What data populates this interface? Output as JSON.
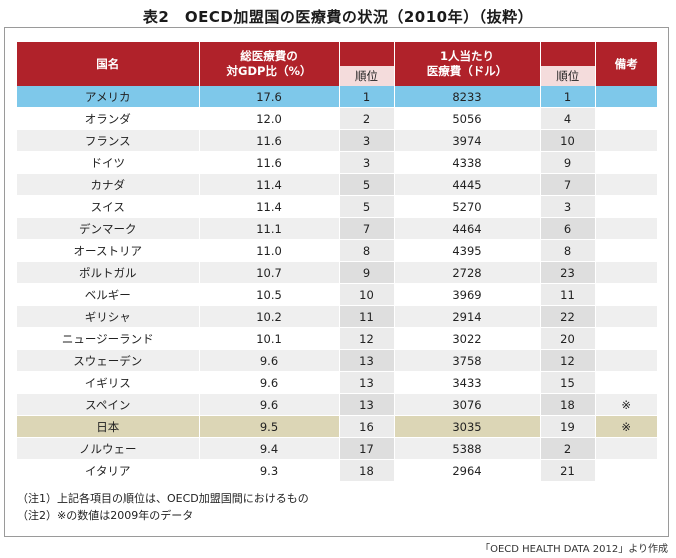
{
  "title": "表2　OECD加盟国の医療費の状況（2010年）（抜粋）",
  "headers": {
    "country": "国名",
    "gdp_ratio": "総医療費の対GDP比（%）",
    "gdp_ratio_line1": "総医療費の",
    "gdp_ratio_line2": "対GDP比（%）",
    "rank": "順位",
    "per_capita_line1": "1人当たり",
    "per_capita_line2": "医療費（ドル）",
    "remarks": "備考"
  },
  "rows": [
    {
      "country": "アメリカ",
      "gdp_ratio": "17.6",
      "gdp_rank": "1",
      "per_capita": "8233",
      "pc_rank": "1",
      "remark": ""
    },
    {
      "country": "オランダ",
      "gdp_ratio": "12.0",
      "gdp_rank": "2",
      "per_capita": "5056",
      "pc_rank": "4",
      "remark": ""
    },
    {
      "country": "フランス",
      "gdp_ratio": "11.6",
      "gdp_rank": "3",
      "per_capita": "3974",
      "pc_rank": "10",
      "remark": ""
    },
    {
      "country": "ドイツ",
      "gdp_ratio": "11.6",
      "gdp_rank": "3",
      "per_capita": "4338",
      "pc_rank": "9",
      "remark": ""
    },
    {
      "country": "カナダ",
      "gdp_ratio": "11.4",
      "gdp_rank": "5",
      "per_capita": "4445",
      "pc_rank": "7",
      "remark": ""
    },
    {
      "country": "スイス",
      "gdp_ratio": "11.4",
      "gdp_rank": "5",
      "per_capita": "5270",
      "pc_rank": "3",
      "remark": ""
    },
    {
      "country": "デンマーク",
      "gdp_ratio": "11.1",
      "gdp_rank": "7",
      "per_capita": "4464",
      "pc_rank": "6",
      "remark": ""
    },
    {
      "country": "オーストリア",
      "gdp_ratio": "11.0",
      "gdp_rank": "8",
      "per_capita": "4395",
      "pc_rank": "8",
      "remark": ""
    },
    {
      "country": "ポルトガル",
      "gdp_ratio": "10.7",
      "gdp_rank": "9",
      "per_capita": "2728",
      "pc_rank": "23",
      "remark": ""
    },
    {
      "country": "ベルギー",
      "gdp_ratio": "10.5",
      "gdp_rank": "10",
      "per_capita": "3969",
      "pc_rank": "11",
      "remark": ""
    },
    {
      "country": "ギリシャ",
      "gdp_ratio": "10.2",
      "gdp_rank": "11",
      "per_capita": "2914",
      "pc_rank": "22",
      "remark": ""
    },
    {
      "country": "ニュージーランド",
      "gdp_ratio": "10.1",
      "gdp_rank": "12",
      "per_capita": "3022",
      "pc_rank": "20",
      "remark": ""
    },
    {
      "country": "スウェーデン",
      "gdp_ratio": "9.6",
      "gdp_rank": "13",
      "per_capita": "3758",
      "pc_rank": "12",
      "remark": ""
    },
    {
      "country": "イギリス",
      "gdp_ratio": "9.6",
      "gdp_rank": "13",
      "per_capita": "3433",
      "pc_rank": "15",
      "remark": ""
    },
    {
      "country": "スペイン",
      "gdp_ratio": "9.6",
      "gdp_rank": "13",
      "per_capita": "3076",
      "pc_rank": "18",
      "remark": "※"
    },
    {
      "country": "日本",
      "gdp_ratio": "9.5",
      "gdp_rank": "16",
      "per_capita": "3035",
      "pc_rank": "19",
      "remark": "※"
    },
    {
      "country": "ノルウェー",
      "gdp_ratio": "9.4",
      "gdp_rank": "17",
      "per_capita": "5388",
      "pc_rank": "2",
      "remark": ""
    },
    {
      "country": "イタリア",
      "gdp_ratio": "9.3",
      "gdp_rank": "18",
      "per_capita": "2964",
      "pc_rank": "21",
      "remark": ""
    }
  ],
  "notes": [
    "（注1）上記各項目の順位は、OECD加盟国間におけるもの",
    "（注2）※の数値は2009年のデータ"
  ],
  "source": "「OECD HEALTH DATA 2012」より作成",
  "colors": {
    "header": "#b0222a",
    "rank_header": "#f4dcdc",
    "highlight_us": "#7ec8ea",
    "highlight_japan": "#dcd6b6"
  }
}
